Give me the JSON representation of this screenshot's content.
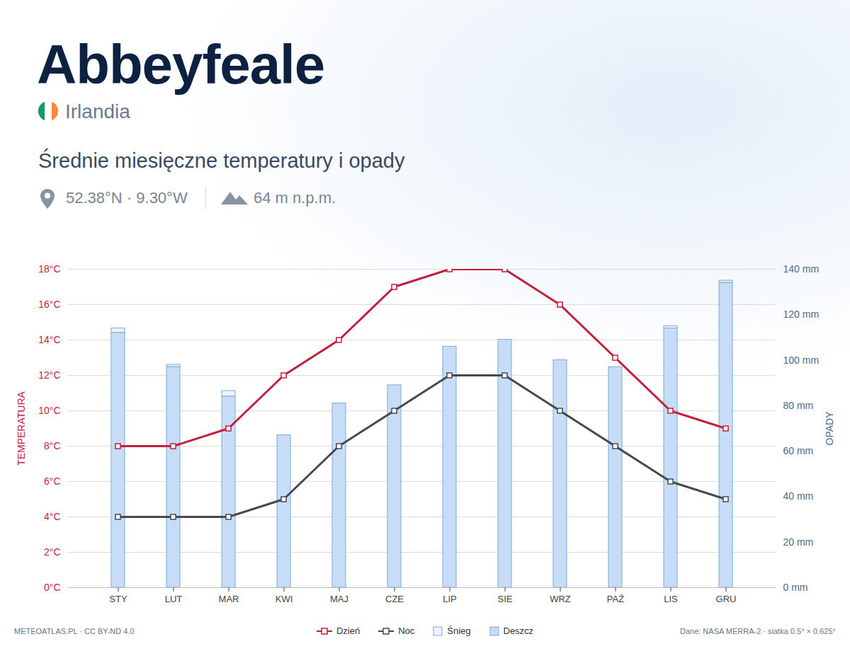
{
  "chart_data": {
    "type": "bar",
    "title": "Abbeyfeale",
    "country": "Irlandia",
    "subtitle": "Średnie miesięczne temperatury i opady",
    "coordinates": "52.38°N · 9.30°W",
    "elevation": "64 m n.p.m.",
    "credit": "METEOATLAS.PL · CC BY-ND 4.0",
    "source": "Dane: NASA MERRA-2 · siatka 0.5° × 0.625°",
    "ylabel": "TEMPERATURA",
    "y2label": "OPADY",
    "categories": [
      "STY",
      "LUT",
      "MAR",
      "KWI",
      "MAJ",
      "CZE",
      "LIP",
      "SIE",
      "WRZ",
      "PAŹ",
      "LIS",
      "GRU"
    ],
    "series": [
      {
        "name": "Dzień",
        "type": "line",
        "color": "#c41e3a",
        "marker": "square",
        "values": [
          8,
          8,
          9,
          12,
          14,
          17,
          18,
          18,
          16,
          13,
          10,
          9
        ]
      },
      {
        "name": "Noc",
        "type": "line",
        "color": "#45494f",
        "marker": "square",
        "values": [
          4,
          4,
          4,
          5,
          8,
          10,
          12,
          12,
          10,
          8,
          6,
          5
        ]
      },
      {
        "name": "Śnieg",
        "type": "bar",
        "axis": "y2",
        "color": "#eaf3fe",
        "values": [
          2,
          1,
          2.5,
          0,
          0,
          0,
          0,
          0,
          0,
          0,
          1,
          1
        ]
      },
      {
        "name": "Deszcz",
        "type": "bar",
        "axis": "y2",
        "color": "#c7ddf7",
        "values": [
          112,
          97,
          84,
          67,
          81,
          89,
          106,
          109,
          100,
          97,
          114,
          134
        ]
      }
    ],
    "stacked": true,
    "ylim": [
      0,
      18
    ],
    "yticks": [
      {
        "value": 0,
        "label": "0°C"
      },
      {
        "value": 2,
        "label": "2°C"
      },
      {
        "value": 4,
        "label": "4°C"
      },
      {
        "value": 6,
        "label": "6°C"
      },
      {
        "value": 8,
        "label": "8°C"
      },
      {
        "value": 10,
        "label": "10°C"
      },
      {
        "value": 12,
        "label": "12°C"
      },
      {
        "value": 14,
        "label": "14°C"
      },
      {
        "value": 16,
        "label": "16°C"
      },
      {
        "value": 18,
        "label": "18°C"
      }
    ],
    "y2lim": [
      0,
      140
    ],
    "y2ticks": [
      {
        "value": 0,
        "label": "0 mm"
      },
      {
        "value": 20,
        "label": "20 mm"
      },
      {
        "value": 40,
        "label": "40 mm"
      },
      {
        "value": 60,
        "label": "60 mm"
      },
      {
        "value": 80,
        "label": "80 mm"
      },
      {
        "value": 100,
        "label": "100 mm"
      },
      {
        "value": 120,
        "label": "120 mm"
      },
      {
        "value": 140,
        "label": "140 mm"
      }
    ],
    "grid": true,
    "legend": "bottom"
  }
}
